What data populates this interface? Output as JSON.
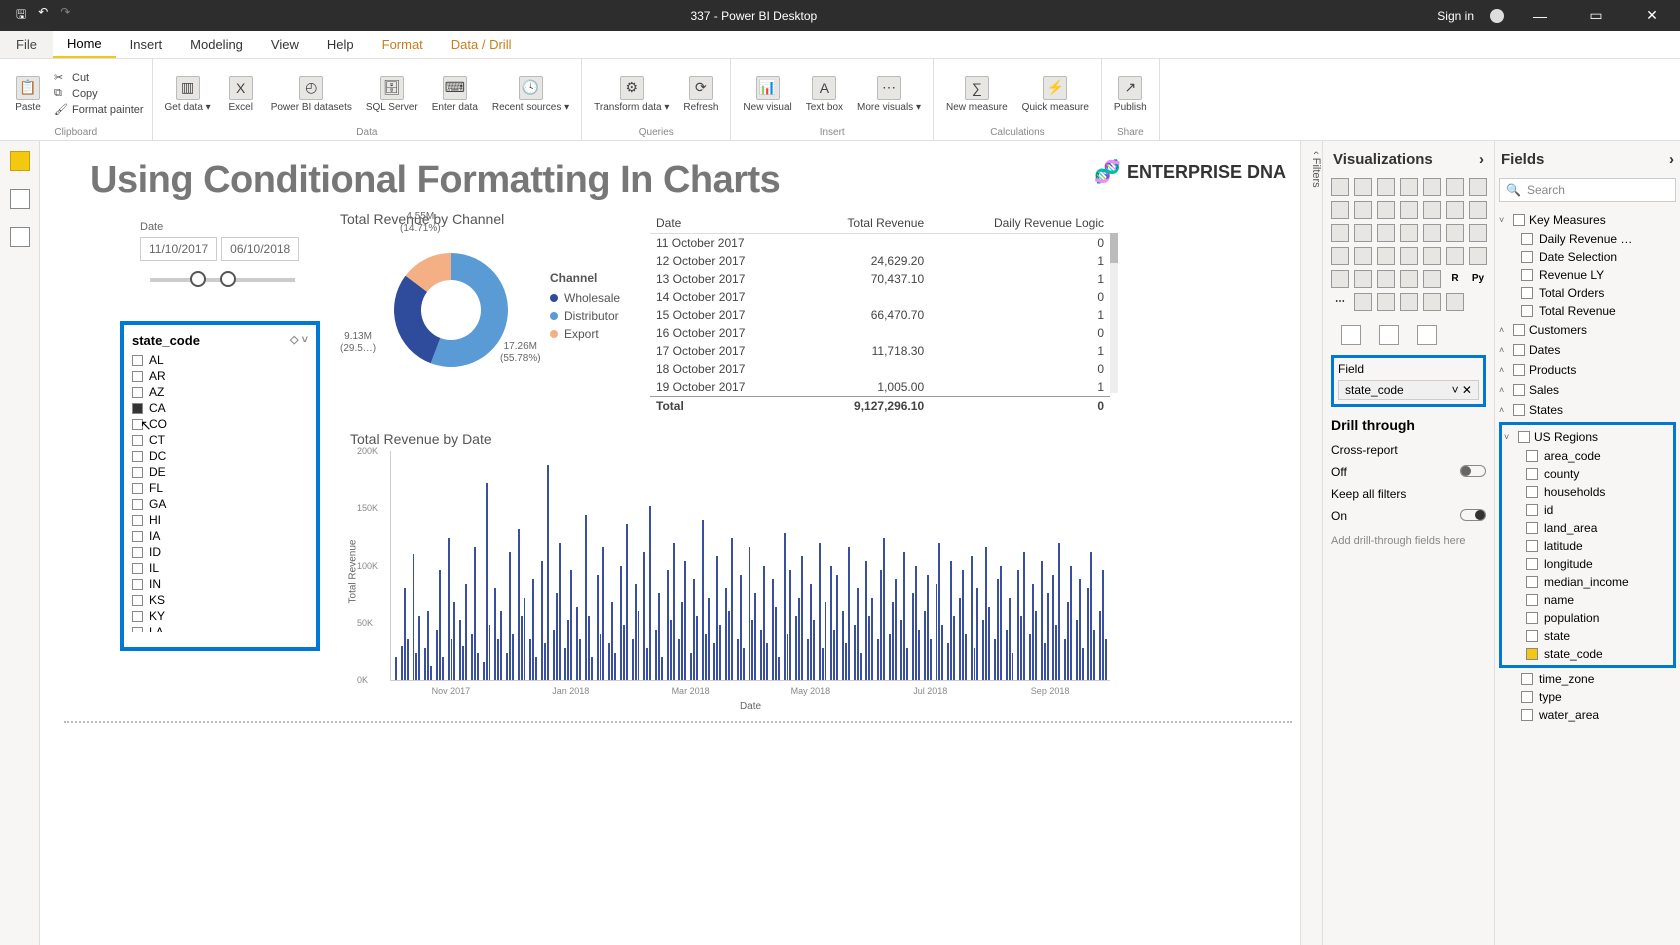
{
  "titlebar": {
    "title": "337 - Power BI Desktop",
    "signin": "Sign in"
  },
  "menutabs": {
    "file": "File",
    "items": [
      "Home",
      "Insert",
      "Modeling",
      "View",
      "Help",
      "Format",
      "Data / Drill"
    ],
    "active": "Home"
  },
  "ribbon": {
    "clipboard": {
      "paste": "Paste",
      "cut": "Cut",
      "copy": "Copy",
      "fmtpainter": "Format painter",
      "label": "Clipboard"
    },
    "data": {
      "getdata": "Get data ▾",
      "excel": "Excel",
      "pbids": "Power BI datasets",
      "sql": "SQL Server",
      "enter": "Enter data",
      "recent": "Recent sources ▾",
      "label": "Data"
    },
    "queries": {
      "transform": "Transform data ▾",
      "refresh": "Refresh",
      "label": "Queries"
    },
    "insert": {
      "newvis": "New visual",
      "textbox": "Text box",
      "more": "More visuals ▾",
      "label": "Insert"
    },
    "calc": {
      "newmeas": "New measure",
      "quick": "Quick measure",
      "label": "Calculations"
    },
    "share": {
      "publish": "Publish",
      "label": "Share"
    }
  },
  "canvas": {
    "title": "Using Conditional Formatting In Charts",
    "brand": "ENTERPRISE DNA",
    "date_label": "Date",
    "date_from": "11/10/2017",
    "date_to": "06/10/2018",
    "slicer": {
      "header": "state_code",
      "items": [
        "AL",
        "AR",
        "AZ",
        "CA",
        "CO",
        "CT",
        "DC",
        "DE",
        "FL",
        "GA",
        "HI",
        "IA",
        "ID",
        "IL",
        "IN",
        "KS",
        "KY",
        "LA"
      ],
      "selected": "CA"
    },
    "donut": {
      "title": "Total Revenue by Channel",
      "legend_title": "Channel",
      "series": [
        {
          "name": "Distributor",
          "value": 17.26,
          "pct": "(55.78%)",
          "vlabel": "17.26M",
          "color": "#5b9bd5"
        },
        {
          "name": "Wholesale",
          "value": 9.13,
          "pct": "(29.5…)",
          "vlabel": "9.13M",
          "color": "#2f4b9b"
        },
        {
          "name": "Export",
          "value": 4.55,
          "pct": "(14.71%)",
          "vlabel": "4.55M",
          "color": "#f4b084"
        }
      ]
    },
    "table": {
      "cols": [
        "Date",
        "Total Revenue",
        "Daily Revenue Logic"
      ],
      "rows": [
        [
          "11 October 2017",
          "",
          "0"
        ],
        [
          "12 October 2017",
          "24,629.20",
          "1"
        ],
        [
          "13 October 2017",
          "70,437.10",
          "1"
        ],
        [
          "14 October 2017",
          "",
          "0"
        ],
        [
          "15 October 2017",
          "66,470.70",
          "1"
        ],
        [
          "16 October 2017",
          "",
          "0"
        ],
        [
          "17 October 2017",
          "11,718.30",
          "1"
        ],
        [
          "18 October 2017",
          "",
          "0"
        ],
        [
          "19 October 2017",
          "1,005.00",
          "1"
        ]
      ],
      "total": [
        "Total",
        "9,127,296.10",
        "0"
      ]
    },
    "column": {
      "title": "Total Revenue by Date",
      "ylabel": "Total Revenue",
      "xlabel": "Date",
      "yticks": [
        {
          "v": "200K",
          "pos": 0
        },
        {
          "v": "150K",
          "pos": 25
        },
        {
          "v": "100K",
          "pos": 50
        },
        {
          "v": "50K",
          "pos": 75
        },
        {
          "v": "0K",
          "pos": 100
        }
      ],
      "xticks": [
        "Nov 2017",
        "Jan 2018",
        "Mar 2018",
        "May 2018",
        "Jul 2018",
        "Sep 2018"
      ],
      "bars": [
        10,
        0,
        15,
        40,
        18,
        0,
        55,
        12,
        28,
        0,
        14,
        30,
        6,
        0,
        22,
        48,
        10,
        0,
        62,
        18,
        34,
        0,
        26,
        15,
        42,
        0,
        20,
        58,
        12,
        0,
        8,
        86,
        24,
        0,
        40,
        18,
        30,
        0,
        12,
        56,
        20,
        0,
        66,
        28,
        36,
        0,
        18,
        44,
        10,
        0,
        52,
        16,
        94,
        0,
        22,
        38,
        60,
        0,
        14,
        26,
        48,
        0,
        32,
        18,
        0,
        72,
        28,
        10,
        0,
        46,
        20,
        58,
        0,
        16,
        34,
        12,
        0,
        50,
        24,
        68,
        0,
        18,
        42,
        30,
        0,
        56,
        14,
        76,
        0,
        22,
        38,
        10,
        0,
        48,
        26,
        60,
        0,
        18,
        34,
        52,
        0,
        12,
        44,
        28,
        0,
        70,
        20,
        36,
        0,
        16,
        54,
        24,
        0,
        40,
        30,
        62,
        0,
        18,
        46,
        14,
        0,
        58,
        26,
        38,
        0,
        22,
        50,
        16,
        0,
        44,
        32,
        10,
        0,
        64,
        20,
        48,
        0,
        28,
        36,
        54,
        0,
        18,
        42,
        26,
        0,
        60,
        14,
        34,
        0,
        50,
        22,
        46,
        0,
        30,
        16,
        58,
        0,
        24,
        40,
        12,
        0,
        52,
        28,
        36,
        0,
        18,
        48,
        62,
        0,
        20,
        34,
        44,
        0,
        26,
        56,
        14,
        0,
        38,
        50,
        22,
        0,
        30,
        46,
        18,
        0,
        42,
        60,
        24,
        0,
        16,
        52,
        28,
        0,
        36,
        48,
        20,
        0,
        54,
        14,
        40,
        0,
        26,
        58,
        32,
        0,
        18,
        44,
        50,
        0,
        22,
        36,
        12,
        0,
        48,
        28,
        56,
        0,
        20,
        42,
        30,
        0,
        52,
        16,
        38,
        0,
        46,
        24,
        60,
        0,
        18,
        34,
        50,
        0,
        26,
        44,
        14,
        0,
        40,
        56,
        22,
        0,
        30,
        48,
        18
      ],
      "bar_color": "#3b4fa0"
    }
  },
  "vispanel": {
    "title": "Visualizations",
    "field_label": "Field",
    "field_value": "state_code",
    "drill_title": "Drill through",
    "cross": "Cross-report",
    "off": "Off",
    "keep": "Keep all filters",
    "on": "On",
    "placeholder": "Add drill-through fields here"
  },
  "fieldspanel": {
    "title": "Fields",
    "search": "Search",
    "tables": [
      {
        "name": "Key Measures",
        "expanded": true,
        "fields": [
          {
            "name": "Daily Revenue …",
            "checked": false
          },
          {
            "name": "Date Selection",
            "checked": false
          },
          {
            "name": "Revenue LY",
            "checked": false
          },
          {
            "name": "Total Orders",
            "checked": false
          },
          {
            "name": "Total Revenue",
            "checked": false
          }
        ]
      },
      {
        "name": "Customers",
        "expanded": false
      },
      {
        "name": "Dates",
        "expanded": false
      },
      {
        "name": "Products",
        "expanded": false
      },
      {
        "name": "Sales",
        "expanded": false
      },
      {
        "name": "States",
        "expanded": false
      },
      {
        "name": "US Regions",
        "expanded": true,
        "highlight": true,
        "fields": [
          {
            "name": "area_code",
            "checked": false
          },
          {
            "name": "county",
            "checked": false
          },
          {
            "name": "households",
            "checked": false
          },
          {
            "name": "id",
            "checked": false
          },
          {
            "name": "land_area",
            "checked": false
          },
          {
            "name": "latitude",
            "checked": false
          },
          {
            "name": "longitude",
            "checked": false
          },
          {
            "name": "median_income",
            "checked": false
          },
          {
            "name": "name",
            "checked": false
          },
          {
            "name": "population",
            "checked": false
          },
          {
            "name": "state",
            "checked": false
          },
          {
            "name": "state_code",
            "checked": true
          }
        ],
        "extra": [
          {
            "name": "time_zone",
            "checked": false
          },
          {
            "name": "type",
            "checked": false
          },
          {
            "name": "water_area",
            "checked": false
          }
        ]
      }
    ]
  },
  "filters_label": "Filters"
}
